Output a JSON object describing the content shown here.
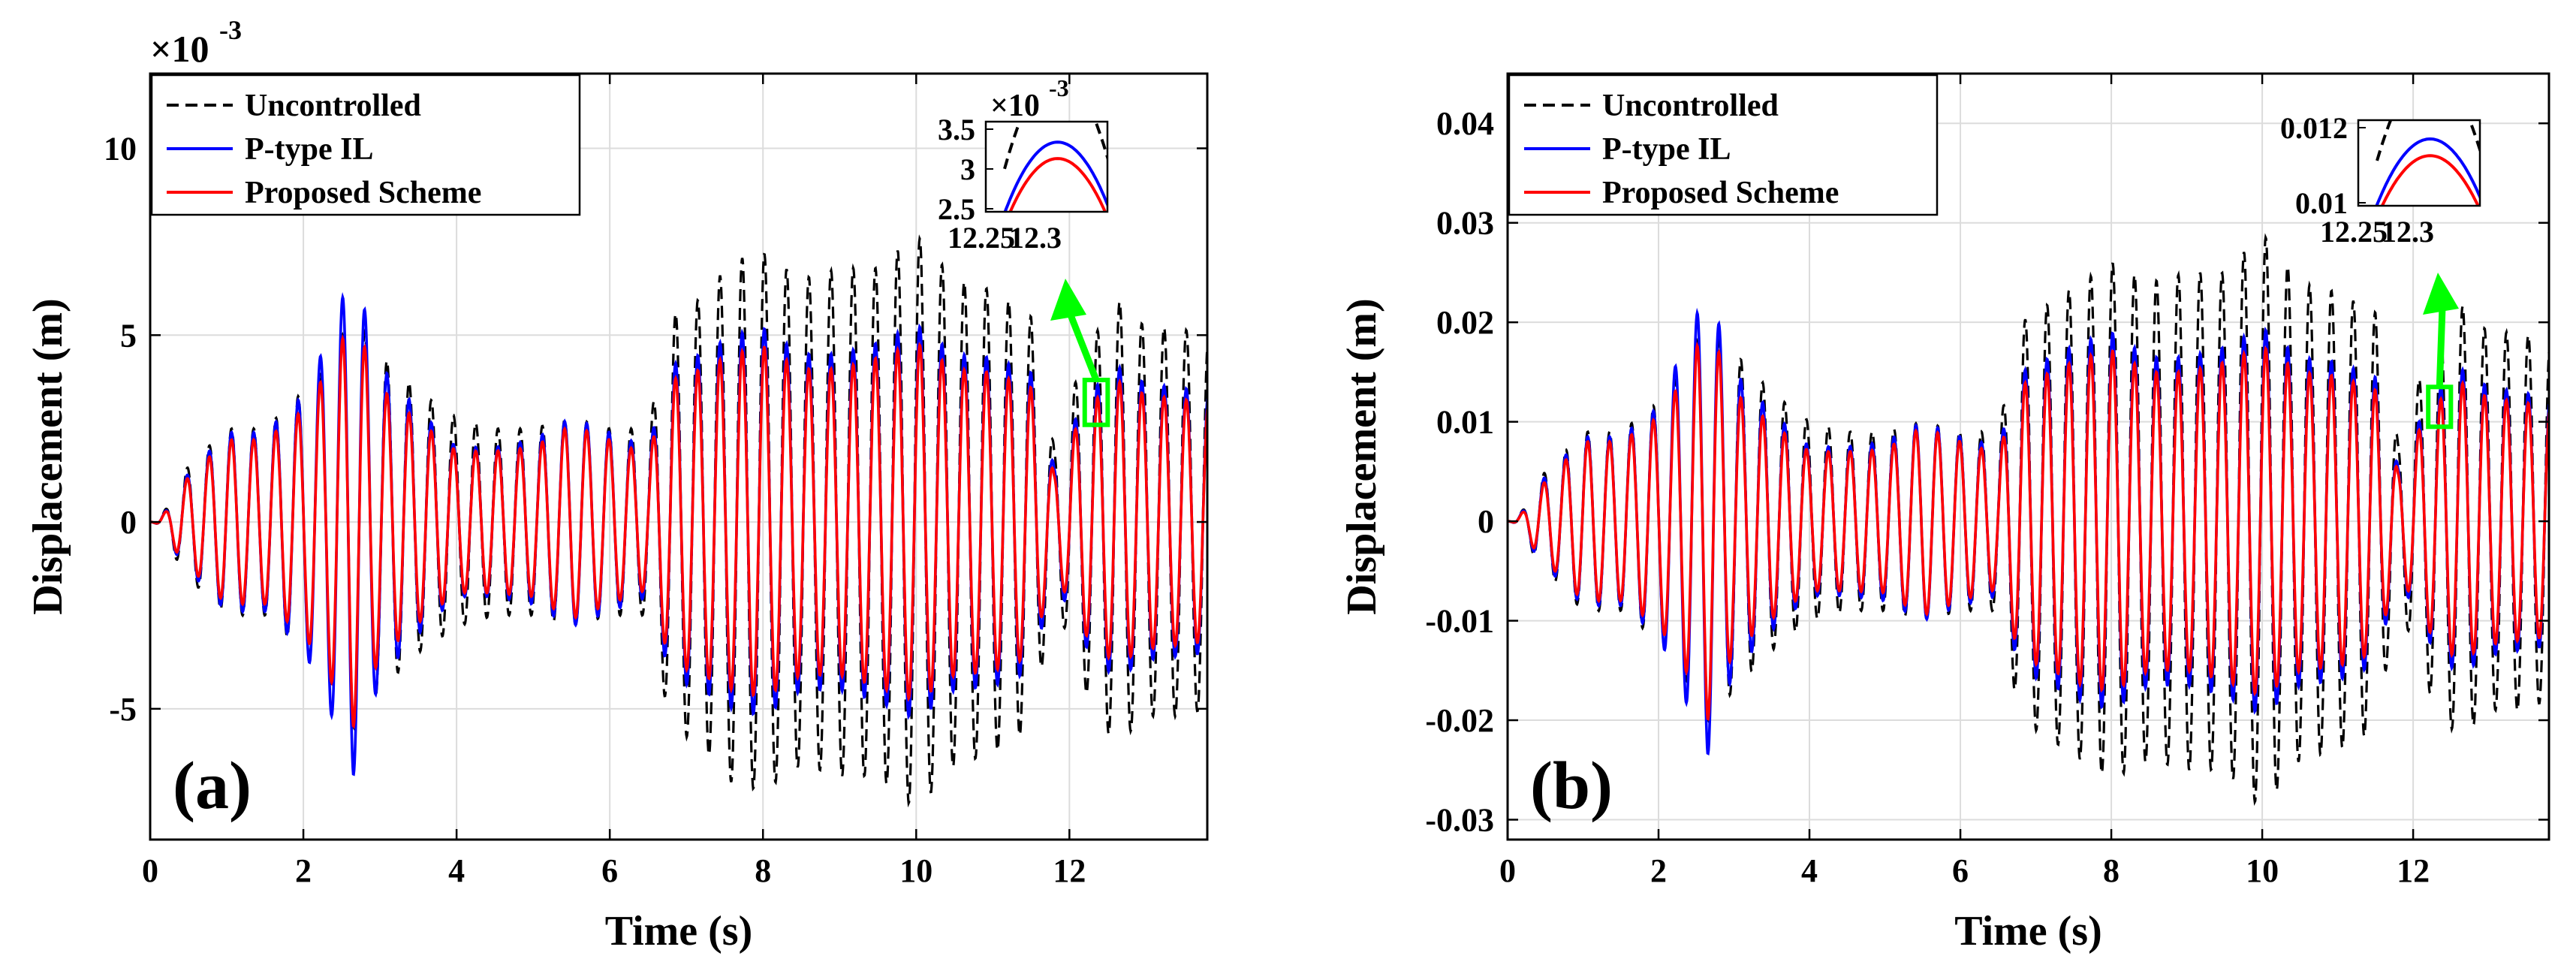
{
  "chart_data": [
    {
      "type": "line",
      "panel_label": "(a)",
      "xlabel": "Time (s)",
      "ylabel": "Displacement (m)",
      "xlim": [
        0,
        13.8
      ],
      "ylim": [
        -0.0085,
        0.012
      ],
      "xticks": [
        0,
        2,
        4,
        6,
        8,
        10,
        12
      ],
      "xtick_labels": [
        "0",
        "2",
        "4",
        "6",
        "8",
        "10",
        "12"
      ],
      "yticks": [
        -0.005,
        0,
        0.005,
        0.01
      ],
      "ytick_labels": [
        "-5",
        "0",
        "5",
        "10"
      ],
      "y_exponent_label": "×10",
      "y_exponent_power": "-3",
      "grid": true,
      "legend_position": "top-left",
      "series": [
        {
          "name": "Uncontrolled",
          "color": "#000000",
          "style": "dashed",
          "x": [
            0.0,
            0.5,
            1.0,
            1.5,
            2.0,
            2.3,
            2.65,
            3.0,
            3.5,
            4.0,
            4.5,
            5.0,
            5.5,
            6.0,
            6.5,
            6.8,
            7.2,
            7.6,
            8.0,
            8.5,
            9.0,
            9.5,
            10.0,
            10.5,
            11.0,
            11.5,
            11.8,
            12.2,
            12.6,
            13.0,
            13.4,
            13.8
          ],
          "amplitude": [
            0.0,
            0.0015,
            0.0025,
            0.0025,
            0.0035,
            0.0042,
            0.0055,
            0.0045,
            0.0035,
            0.0028,
            0.0025,
            0.0025,
            0.0028,
            0.0025,
            0.0025,
            0.0055,
            0.006,
            0.007,
            0.0072,
            0.0065,
            0.0068,
            0.0068,
            0.0077,
            0.0065,
            0.0062,
            0.0055,
            0.002,
            0.0045,
            0.006,
            0.0052,
            0.0052,
            0.005
          ]
        },
        {
          "name": "P-type IL",
          "color": "#0000ff",
          "style": "solid",
          "x": [
            0.0,
            0.5,
            1.0,
            1.5,
            2.0,
            2.3,
            2.65,
            3.0,
            3.5,
            4.0,
            4.5,
            5.0,
            5.5,
            6.0,
            6.5,
            6.8,
            7.2,
            7.6,
            8.0,
            8.5,
            9.0,
            9.5,
            10.0,
            10.5,
            11.0,
            11.5,
            11.8,
            12.2,
            12.6,
            13.0,
            13.4,
            13.8
          ],
          "amplitude": [
            0.0,
            0.0013,
            0.0024,
            0.0024,
            0.0034,
            0.0048,
            0.0068,
            0.0042,
            0.003,
            0.002,
            0.002,
            0.0022,
            0.0028,
            0.0024,
            0.002,
            0.0042,
            0.0045,
            0.005,
            0.0052,
            0.0045,
            0.0045,
            0.0048,
            0.0053,
            0.0045,
            0.0044,
            0.004,
            0.0015,
            0.0033,
            0.0042,
            0.0037,
            0.0036,
            0.0035
          ]
        },
        {
          "name": "Proposed Scheme",
          "color": "#ff0000",
          "style": "solid",
          "x": [
            0.0,
            0.5,
            1.0,
            1.5,
            2.0,
            2.3,
            2.65,
            3.0,
            3.5,
            4.0,
            4.5,
            5.0,
            5.5,
            6.0,
            6.5,
            6.8,
            7.2,
            7.6,
            8.0,
            8.5,
            9.0,
            9.5,
            10.0,
            10.5,
            11.0,
            11.5,
            11.8,
            12.2,
            12.6,
            13.0,
            13.4,
            13.8
          ],
          "amplitude": [
            0.0,
            0.0012,
            0.0022,
            0.0022,
            0.003,
            0.004,
            0.0055,
            0.0036,
            0.0027,
            0.0019,
            0.0019,
            0.002,
            0.0026,
            0.0022,
            0.0018,
            0.0038,
            0.0041,
            0.0045,
            0.0047,
            0.0041,
            0.0041,
            0.0044,
            0.0048,
            0.0041,
            0.004,
            0.0036,
            0.0013,
            0.003,
            0.0038,
            0.0034,
            0.0033,
            0.0032
          ]
        }
      ],
      "inset": {
        "xlim": [
          12.22,
          12.33
        ],
        "ylim": [
          0.0025,
          0.0036
        ],
        "xtick_labels": [
          "12.25",
          "12.3"
        ],
        "ytick_labels": [
          "2.5",
          "3",
          "3.5"
        ],
        "exponent_label": "×10",
        "exponent_power": "-3",
        "peak_x": 12.285,
        "peaks": {
          "Uncontrolled": 0.0042,
          "P-type IL": 0.00335,
          "Proposed Scheme": 0.00315
        },
        "arrow_color": "#00ff00",
        "zoom_box_x": [
          12.2,
          12.5
        ],
        "zoom_box_y": [
          0.0026,
          0.0038
        ]
      }
    },
    {
      "type": "line",
      "panel_label": "(b)",
      "xlabel": "Time (s)",
      "ylabel": "Displacement (m)",
      "xlim": [
        0,
        13.8
      ],
      "ylim": [
        -0.032,
        0.045
      ],
      "xticks": [
        0,
        2,
        4,
        6,
        8,
        10,
        12
      ],
      "xtick_labels": [
        "0",
        "2",
        "4",
        "6",
        "8",
        "10",
        "12"
      ],
      "yticks": [
        -0.03,
        -0.02,
        -0.01,
        0,
        0.01,
        0.02,
        0.03,
        0.04
      ],
      "ytick_labels": [
        "-0.03",
        "-0.02",
        "-0.01",
        "0",
        "0.01",
        "0.02",
        "0.03",
        "0.04"
      ],
      "grid": true,
      "legend_position": "top-left",
      "series": [
        {
          "name": "Uncontrolled",
          "color": "#000000",
          "style": "dashed",
          "x": [
            0.0,
            0.5,
            1.0,
            1.5,
            2.0,
            2.3,
            2.65,
            3.0,
            3.5,
            4.0,
            4.5,
            5.0,
            5.5,
            6.0,
            6.5,
            6.8,
            7.2,
            7.6,
            8.0,
            8.5,
            9.0,
            9.5,
            10.0,
            10.5,
            11.0,
            11.5,
            11.8,
            12.2,
            12.6,
            13.0,
            13.4,
            13.8
          ],
          "amplitude": [
            0.0,
            0.005,
            0.009,
            0.009,
            0.012,
            0.015,
            0.02,
            0.017,
            0.013,
            0.01,
            0.009,
            0.009,
            0.01,
            0.009,
            0.009,
            0.02,
            0.022,
            0.024,
            0.026,
            0.024,
            0.025,
            0.025,
            0.029,
            0.024,
            0.023,
            0.021,
            0.008,
            0.017,
            0.022,
            0.019,
            0.019,
            0.018
          ]
        },
        {
          "name": "P-type IL",
          "color": "#0000ff",
          "style": "solid",
          "x": [
            0.0,
            0.5,
            1.0,
            1.5,
            2.0,
            2.3,
            2.65,
            3.0,
            3.5,
            4.0,
            4.5,
            5.0,
            5.5,
            6.0,
            6.5,
            6.8,
            7.2,
            7.6,
            8.0,
            8.5,
            9.0,
            9.5,
            10.0,
            10.5,
            11.0,
            11.5,
            11.8,
            12.2,
            12.6,
            13.0,
            13.4,
            13.8
          ],
          "amplitude": [
            0.0,
            0.0045,
            0.0085,
            0.0085,
            0.0115,
            0.017,
            0.0235,
            0.015,
            0.011,
            0.0075,
            0.0075,
            0.008,
            0.01,
            0.0085,
            0.0075,
            0.015,
            0.0165,
            0.018,
            0.019,
            0.0165,
            0.0165,
            0.0175,
            0.0195,
            0.0165,
            0.016,
            0.0145,
            0.0055,
            0.012,
            0.0155,
            0.0135,
            0.013,
            0.0125
          ]
        },
        {
          "name": "Proposed Scheme",
          "color": "#ff0000",
          "style": "solid",
          "x": [
            0.0,
            0.5,
            1.0,
            1.5,
            2.0,
            2.3,
            2.65,
            3.0,
            3.5,
            4.0,
            4.5,
            5.0,
            5.5,
            6.0,
            6.5,
            6.8,
            7.2,
            7.6,
            8.0,
            8.5,
            9.0,
            9.5,
            10.0,
            10.5,
            11.0,
            11.5,
            11.8,
            12.2,
            12.6,
            13.0,
            13.4,
            13.8
          ],
          "amplitude": [
            0.0,
            0.004,
            0.008,
            0.008,
            0.0105,
            0.014,
            0.02,
            0.013,
            0.0098,
            0.007,
            0.007,
            0.0072,
            0.0095,
            0.008,
            0.0068,
            0.0137,
            0.015,
            0.0164,
            0.0172,
            0.015,
            0.015,
            0.016,
            0.0176,
            0.015,
            0.0146,
            0.0132,
            0.005,
            0.011,
            0.0141,
            0.0124,
            0.012,
            0.0116
          ]
        }
      ],
      "inset": {
        "xlim": [
          12.22,
          12.33
        ],
        "ylim": [
          0.009,
          0.0131
        ],
        "xtick_labels": [
          "12.25",
          "12.3"
        ],
        "ytick_labels": [
          "0.01",
          "0.012"
        ],
        "peak_x": 12.285,
        "peaks": {
          "Uncontrolled": 0.0155,
          "P-type IL": 0.0122,
          "Proposed Scheme": 0.0114
        },
        "arrow_color": "#00ff00",
        "zoom_box_x": [
          12.2,
          12.5
        ],
        "zoom_box_y": [
          0.0095,
          0.0135
        ]
      }
    }
  ]
}
